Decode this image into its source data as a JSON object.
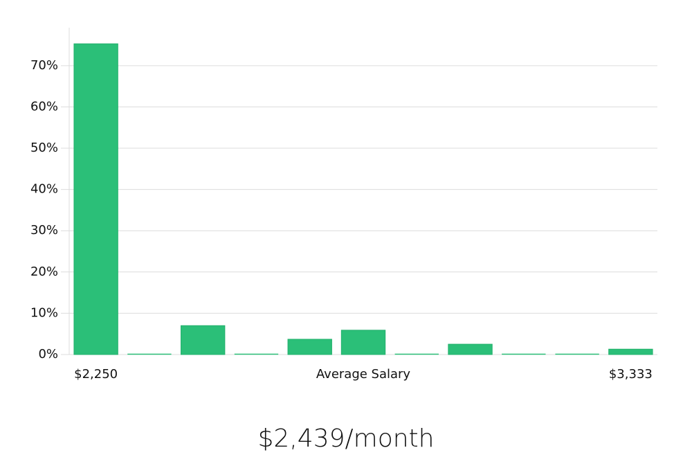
{
  "chart_data": {
    "type": "bar",
    "categories": [
      "$2,250",
      null,
      null,
      null,
      null,
      null,
      null,
      null,
      null,
      null,
      "$3,333"
    ],
    "values": [
      75.3,
      0,
      7.0,
      0,
      3.7,
      5.9,
      0,
      2.5,
      0,
      0,
      1.3
    ],
    "color": "#2bbf78",
    "x_label": "Average Salary",
    "caption": "$2,439/month",
    "ylim": [
      0,
      79.2
    ],
    "yticks": [
      {
        "value": 0,
        "label": "0%"
      },
      {
        "value": 10,
        "label": "10%"
      },
      {
        "value": 20,
        "label": "20%"
      },
      {
        "value": 30,
        "label": "30%"
      },
      {
        "value": 40,
        "label": "40%"
      },
      {
        "value": 50,
        "label": "50%"
      },
      {
        "value": 60,
        "label": "60%"
      },
      {
        "value": 70,
        "label": "70%"
      }
    ],
    "grid": true
  }
}
